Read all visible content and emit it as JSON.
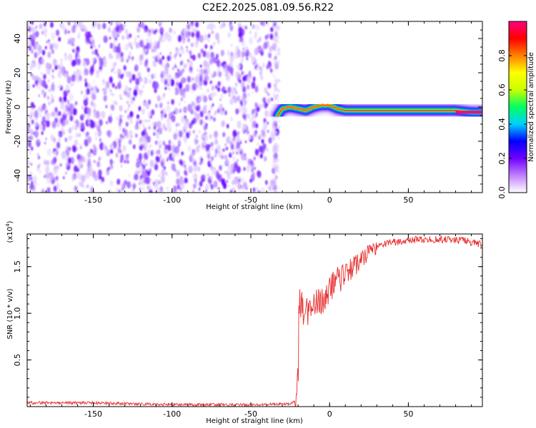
{
  "title": "C2E2.2025.081.09.56.R22",
  "chart_data": [
    {
      "type": "heatmap",
      "xlabel": "Height of straight line (km)",
      "ylabel": "Frequency (Hz)",
      "xlim": [
        -192,
        97
      ],
      "ylim": [
        -50,
        50
      ],
      "x_ticks": [
        -150,
        -100,
        -50,
        0,
        50
      ],
      "y_ticks": [
        -40,
        -20,
        0,
        20,
        40
      ],
      "noise_region_x": [
        -192,
        -33
      ],
      "signal_track": [
        {
          "x": -33,
          "y": -5
        },
        {
          "x": -30,
          "y": -1
        },
        {
          "x": -25,
          "y": 0
        },
        {
          "x": -20,
          "y": -1
        },
        {
          "x": -15,
          "y": -2
        },
        {
          "x": -10,
          "y": 0
        },
        {
          "x": -5,
          "y": 1
        },
        {
          "x": 0,
          "y": 1
        },
        {
          "x": 5,
          "y": -1
        },
        {
          "x": 10,
          "y": -2
        },
        {
          "x": 30,
          "y": -2
        },
        {
          "x": 60,
          "y": -2
        },
        {
          "x": 80,
          "y": -2
        },
        {
          "x": 90,
          "y": -3
        },
        {
          "x": 97,
          "y": -3
        }
      ],
      "colorbar": {
        "label": "Normalized spectral amplitude",
        "range": [
          0,
          1
        ],
        "ticks": [
          "0.0",
          "0.2",
          "0.4",
          "0.6",
          "0.8"
        ],
        "colors": [
          "#ffffff",
          "#c080ff",
          "#7000ff",
          "#0000ff",
          "#00d0ff",
          "#00ff60",
          "#c8ff00",
          "#ffff00",
          "#ff8000",
          "#ff0000",
          "#ff0080"
        ]
      }
    },
    {
      "type": "line",
      "xlabel": "Height of straight line (km)",
      "ylabel": "SNR (10 * v/v)",
      "y_multiplier": "(x10",
      "y_multiplier_exp": "4",
      "y_multiplier_close": ")",
      "xlim": [
        -192,
        97
      ],
      "ylim": [
        0,
        1.85
      ],
      "x_ticks": [
        -150,
        -100,
        -50,
        0,
        50
      ],
      "y_ticks": [
        0.5,
        1.0,
        1.5
      ],
      "y_tick_labels": [
        "0.5",
        "1.0",
        "1.5"
      ],
      "line_color": "#e83030",
      "series": [
        {
          "x": [
            -192,
            -150,
            -100,
            -50,
            -25,
            -22,
            -20,
            -19.5,
            -15,
            -10,
            -5,
            0,
            5,
            10,
            15,
            20,
            25,
            30,
            40,
            50,
            60,
            70,
            80,
            90,
            97
          ],
          "y": [
            0.04,
            0.04,
            0.02,
            0.02,
            0.03,
            0.06,
            0.3,
            1.1,
            1.0,
            1.1,
            1.15,
            1.25,
            1.35,
            1.4,
            1.5,
            1.55,
            1.65,
            1.72,
            1.76,
            1.78,
            1.79,
            1.79,
            1.79,
            1.76,
            1.74
          ]
        }
      ]
    }
  ]
}
